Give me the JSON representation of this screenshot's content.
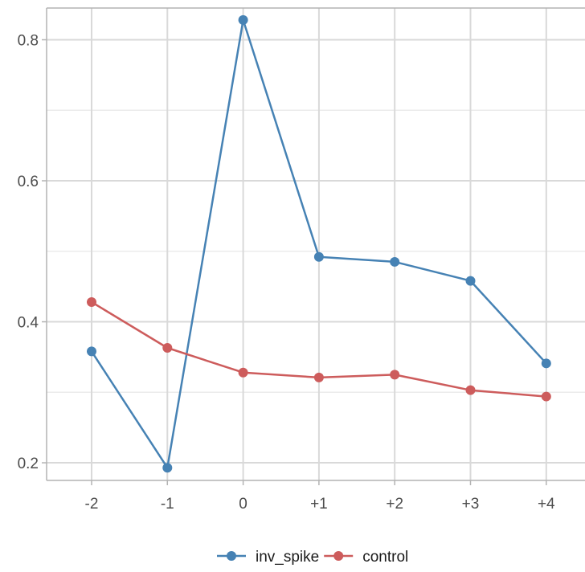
{
  "chart_data": {
    "type": "line",
    "title": "",
    "xlabel": "",
    "ylabel": "",
    "categories": [
      "-2",
      "-1",
      "0",
      "+1",
      "+2",
      "+3",
      "+4"
    ],
    "ylim": [
      0.175,
      0.845
    ],
    "y_ticks": [
      0.2,
      0.4,
      0.6,
      0.8
    ],
    "y_tick_labels": [
      "0.2",
      "0.4",
      "0.6",
      "0.8"
    ],
    "grid": true,
    "legend_position": "bottom",
    "series": [
      {
        "name": "inv_spike",
        "color": "#4682b4",
        "values": [
          0.358,
          0.193,
          0.828,
          0.492,
          0.485,
          0.458,
          0.341
        ]
      },
      {
        "name": "control",
        "color": "#cd5c5c",
        "values": [
          0.428,
          0.363,
          0.328,
          0.321,
          0.325,
          0.303,
          0.294
        ]
      }
    ]
  }
}
